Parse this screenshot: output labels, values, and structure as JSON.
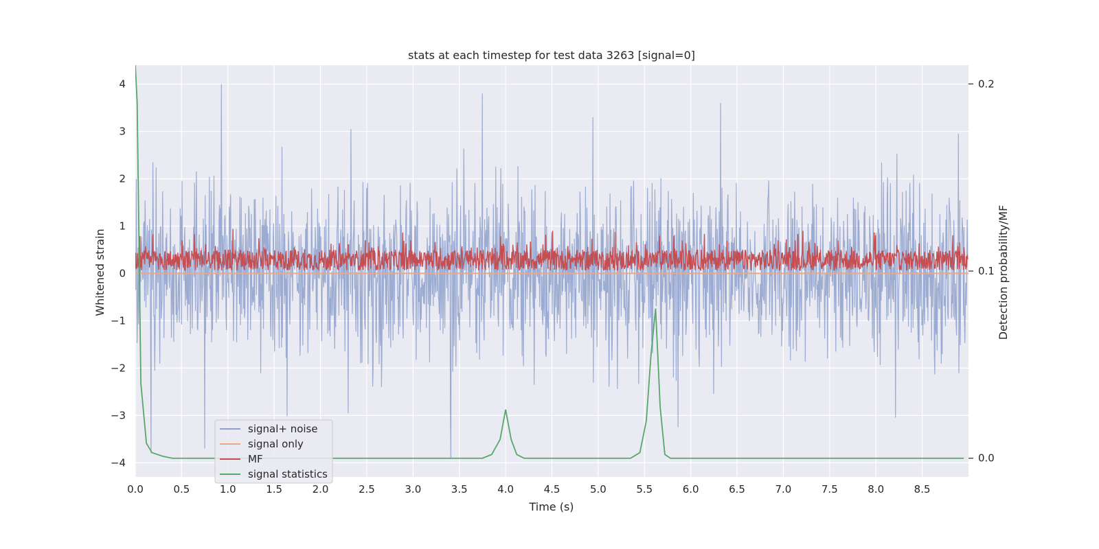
{
  "chart_data": {
    "type": "line",
    "title": "stats at each timestep for test data 3263 [signal=0]",
    "xlabel": "Time (s)",
    "ylabel": "Whitened strain",
    "y2label": "Detection probability/MF",
    "xlim": [
      0.0,
      9.0
    ],
    "ylim": [
      -4.3,
      4.4
    ],
    "y2lim": [
      -0.01,
      0.21
    ],
    "xticks": [
      0.0,
      0.5,
      1.0,
      1.5,
      2.0,
      2.5,
      3.0,
      3.5,
      4.0,
      4.5,
      5.0,
      5.5,
      6.0,
      6.5,
      7.0,
      7.5,
      8.0,
      8.5
    ],
    "xtick_labels": [
      "0.0",
      "0.5",
      "1.0",
      "1.5",
      "2.0",
      "2.5",
      "3.0",
      "3.5",
      "4.0",
      "4.5",
      "5.0",
      "5.5",
      "6.0",
      "6.5",
      "7.0",
      "7.5",
      "8.0",
      "8.5"
    ],
    "yticks": [
      -4,
      -3,
      -2,
      -1,
      0,
      1,
      2,
      3,
      4
    ],
    "ytick_labels": [
      "−4",
      "−3",
      "−2",
      "−1",
      "0",
      "1",
      "2",
      "3",
      "4"
    ],
    "y2ticks": [
      0.0,
      0.1,
      0.2
    ],
    "y2tick_labels": [
      "0.0",
      "0.1",
      "0.2"
    ],
    "grid": true,
    "legend_position": "lower-left",
    "series": [
      {
        "name": "signal+ noise",
        "axis": "left",
        "color": "#8da0cb",
        "style": "dense-noise",
        "noise_sigma": 0.9,
        "n_samples": 1800,
        "peaks": [
          {
            "x": 0.93,
            "y": 4.0
          },
          {
            "x": 3.75,
            "y": 3.8
          },
          {
            "x": 6.33,
            "y": 3.6
          },
          {
            "x": 4.95,
            "y": 3.3
          },
          {
            "x": 2.33,
            "y": 3.05
          },
          {
            "x": 8.9,
            "y": 2.95
          },
          {
            "x": 0.17,
            "y": -3.8
          },
          {
            "x": 0.75,
            "y": -3.7
          },
          {
            "x": 3.41,
            "y": -3.9
          },
          {
            "x": 5.87,
            "y": -3.25
          },
          {
            "x": 8.22,
            "y": -3.05
          },
          {
            "x": 2.3,
            "y": -2.95
          }
        ]
      },
      {
        "name": "signal only",
        "axis": "left",
        "color": "#e8a98a",
        "x": [
          0.0,
          9.0
        ],
        "y": [
          0.0,
          0.0
        ]
      },
      {
        "name": "MF",
        "axis": "left",
        "color": "#c44e52",
        "style": "dense-band",
        "base": 0.28,
        "spread": 0.22,
        "n_samples": 1800
      },
      {
        "name": "signal statistics",
        "axis": "right",
        "color": "#55a868",
        "x": [
          0.0,
          0.02,
          0.06,
          0.12,
          0.18,
          0.3,
          0.4,
          0.6,
          1.0,
          2.0,
          3.0,
          3.5,
          3.75,
          3.85,
          3.94,
          4.0,
          4.06,
          4.12,
          4.2,
          4.3,
          5.0,
          5.35,
          5.45,
          5.52,
          5.57,
          5.62,
          5.67,
          5.72,
          5.78,
          5.85,
          6.0,
          7.0,
          8.0,
          8.95
        ],
        "y": [
          0.21,
          0.19,
          0.04,
          0.008,
          0.003,
          0.001,
          0.0,
          0.0,
          0.0,
          0.0,
          0.0,
          0.0,
          0.0,
          0.002,
          0.01,
          0.026,
          0.01,
          0.002,
          0.0,
          0.0,
          0.0,
          0.0,
          0.003,
          0.02,
          0.055,
          0.08,
          0.027,
          0.002,
          0.0,
          0.0,
          0.0,
          0.0,
          0.0,
          0.0
        ]
      }
    ]
  }
}
